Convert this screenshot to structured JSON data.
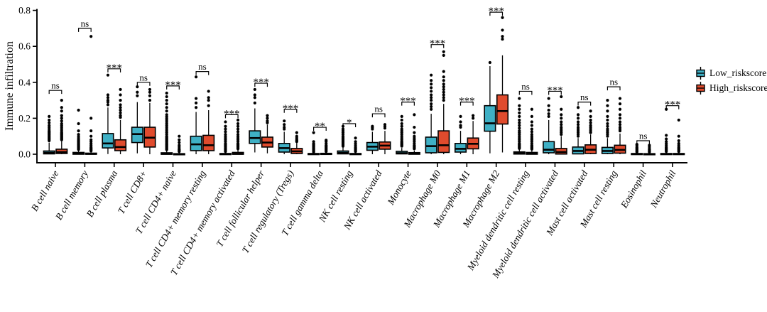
{
  "chart_data": {
    "type": "boxplot",
    "title": "",
    "xlabel": "",
    "ylabel": "Immune infiltration",
    "ylim": [
      0,
      0.8
    ],
    "yticks": [
      0.0,
      0.2,
      0.4,
      0.6,
      0.8
    ],
    "grid": false,
    "legend_position": "right",
    "categories": [
      "B cell naive",
      "B cell memory",
      "B cell plasma",
      "T cell CD8+",
      "T cell CD4+ naive",
      "T cell CD4+ memory resting",
      "T cell CD4+ memory activated",
      "T cell follicular helper",
      "T cell regulatory (Tregs)",
      "T cell gamma delta",
      "NK cell resting",
      "NK cell activated",
      "Monocyte",
      "Macrophage M0",
      "Macrophage M1",
      "Macrophage M2",
      "Myeloid dendritic cell resting",
      "Myeloid dendritic cell activated",
      "Mast cell activated",
      "Mast cell resting",
      "Eosinophil",
      "Neutrophil"
    ],
    "significance": [
      {
        "label": "ns",
        "y": 0.355
      },
      {
        "label": "ns",
        "y": 0.7
      },
      {
        "label": "***",
        "y": 0.475
      },
      {
        "label": "ns",
        "y": 0.4
      },
      {
        "label": "***",
        "y": 0.38
      },
      {
        "label": "ns",
        "y": 0.46
      },
      {
        "label": "***",
        "y": 0.22
      },
      {
        "label": "***",
        "y": 0.395
      },
      {
        "label": "***",
        "y": 0.25
      },
      {
        "label": "**",
        "y": 0.15
      },
      {
        "label": "*",
        "y": 0.17
      },
      {
        "label": "ns",
        "y": 0.225
      },
      {
        "label": "***",
        "y": 0.29
      },
      {
        "label": "***",
        "y": 0.61
      },
      {
        "label": "***",
        "y": 0.29
      },
      {
        "label": "***",
        "y": 0.79
      },
      {
        "label": "ns",
        "y": 0.35
      },
      {
        "label": "***",
        "y": 0.35
      },
      {
        "label": "ns",
        "y": 0.29
      },
      {
        "label": "ns",
        "y": 0.375
      },
      {
        "label": "ns",
        "y": 0.075
      },
      {
        "label": "***",
        "y": 0.27
      }
    ],
    "series": [
      {
        "name": "Low_riskscore",
        "color": "#3fb0c5",
        "boxes": [
          {
            "lo": 0,
            "q1": 0.002,
            "med": 0.008,
            "q3": 0.018,
            "hi": 0.065,
            "outliers": [
              0.075,
              0.08,
              0.085,
              0.09,
              0.095,
              0.1,
              0.105,
              0.11,
              0.115,
              0.12,
              0.125,
              0.13,
              0.14,
              0.15,
              0.16,
              0.175,
              0.19,
              0.21
            ]
          },
          {
            "lo": 0,
            "q1": 0,
            "med": 0.003,
            "q3": 0.01,
            "hi": 0.022,
            "outliers": [
              0.026,
              0.03,
              0.034,
              0.038,
              0.042,
              0.046,
              0.05,
              0.055,
              0.06,
              0.065,
              0.07,
              0.075,
              0.08,
              0.09,
              0.1,
              0.11,
              0.13,
              0.17,
              0.245
            ]
          },
          {
            "lo": 0.001,
            "q1": 0.035,
            "med": 0.06,
            "q3": 0.115,
            "hi": 0.26,
            "outliers": [
              0.275,
              0.29,
              0.3,
              0.315,
              0.33,
              0.44
            ]
          },
          {
            "lo": 0.005,
            "q1": 0.065,
            "med": 0.112,
            "q3": 0.15,
            "hi": 0.29,
            "outliers": [
              0.325,
              0.345,
              0.375
            ]
          },
          {
            "lo": 0,
            "q1": 0,
            "med": 0.002,
            "q3": 0.008,
            "hi": 0.02,
            "outliers": [
              0.025,
              0.03,
              0.035,
              0.04,
              0.045,
              0.05,
              0.055,
              0.06,
              0.065,
              0.07,
              0.075,
              0.08,
              0.085,
              0.09,
              0.095,
              0.1,
              0.11,
              0.12,
              0.13,
              0.14,
              0.15,
              0.16,
              0.17,
              0.18,
              0.19,
              0.2,
              0.21,
              0.22,
              0.24,
              0.26,
              0.28,
              0.3,
              0.32,
              0.34
            ]
          },
          {
            "lo": 0,
            "q1": 0.02,
            "med": 0.055,
            "q3": 0.1,
            "hi": 0.235,
            "outliers": [
              0.26,
              0.285,
              0.31,
              0.43
            ]
          },
          {
            "lo": 0,
            "q1": 0,
            "med": 0.001,
            "q3": 0.004,
            "hi": 0.01,
            "outliers": [
              0.015,
              0.02,
              0.025,
              0.03,
              0.035,
              0.04,
              0.045,
              0.05,
              0.055,
              0.06,
              0.07,
              0.08,
              0.09,
              0.1,
              0.11,
              0.125,
              0.14,
              0.155,
              0.18
            ]
          },
          {
            "lo": 0.01,
            "q1": 0.06,
            "med": 0.09,
            "q3": 0.13,
            "hi": 0.255,
            "outliers": [
              0.285,
              0.315,
              0.33,
              0.36
            ]
          },
          {
            "lo": 0,
            "q1": 0.012,
            "med": 0.034,
            "q3": 0.06,
            "hi": 0.125,
            "outliers": [
              0.14,
              0.15,
              0.165,
              0.185
            ]
          },
          {
            "lo": 0,
            "q1": 0,
            "med": 0.001,
            "q3": 0.004,
            "hi": 0.01,
            "outliers": [
              0.012,
              0.016,
              0.02,
              0.025,
              0.03,
              0.035,
              0.04,
              0.045,
              0.05,
              0.055,
              0.06,
              0.07,
              0.12
            ]
          },
          {
            "lo": 0,
            "q1": 0.002,
            "med": 0.008,
            "q3": 0.018,
            "hi": 0.04,
            "outliers": [
              0.045,
              0.05,
              0.055,
              0.06,
              0.065,
              0.07,
              0.075,
              0.08,
              0.085,
              0.09,
              0.095,
              0.1,
              0.11,
              0.12,
              0.13,
              0.14,
              0.155
            ]
          },
          {
            "lo": 0,
            "q1": 0.022,
            "med": 0.042,
            "q3": 0.065,
            "hi": 0.125,
            "outliers": [
              0.14,
              0.148,
              0.155
            ]
          },
          {
            "lo": 0,
            "q1": 0.002,
            "med": 0.006,
            "q3": 0.016,
            "hi": 0.035,
            "outliers": [
              0.045,
              0.05,
              0.055,
              0.06,
              0.065,
              0.07,
              0.08,
              0.09,
              0.1,
              0.11,
              0.12,
              0.13,
              0.14,
              0.155,
              0.17,
              0.19,
              0.21
            ]
          },
          {
            "lo": 0,
            "q1": 0.008,
            "med": 0.045,
            "q3": 0.095,
            "hi": 0.225,
            "outliers": [
              0.25,
              0.265,
              0.28,
              0.3,
              0.315,
              0.33,
              0.35,
              0.37,
              0.39,
              0.41,
              0.44
            ]
          },
          {
            "lo": 0,
            "q1": 0.012,
            "med": 0.03,
            "q3": 0.06,
            "hi": 0.13,
            "outliers": [
              0.15,
              0.16,
              0.18,
              0.21
            ]
          },
          {
            "lo": 0.005,
            "q1": 0.128,
            "med": 0.172,
            "q3": 0.27,
            "hi": 0.49,
            "outliers": [
              0.51
            ]
          },
          {
            "lo": 0,
            "q1": 0.001,
            "med": 0.005,
            "q3": 0.013,
            "hi": 0.028,
            "outliers": [
              0.032,
              0.036,
              0.04,
              0.045,
              0.05,
              0.055,
              0.06,
              0.07,
              0.08,
              0.09,
              0.1,
              0.11,
              0.12,
              0.13,
              0.145,
              0.16,
              0.175,
              0.19,
              0.21,
              0.23,
              0.25,
              0.27,
              0.31
            ]
          },
          {
            "lo": 0,
            "q1": 0.008,
            "med": 0.025,
            "q3": 0.07,
            "hi": 0.19,
            "outliers": [
              0.21,
              0.225,
              0.245,
              0.27,
              0.31
            ]
          },
          {
            "lo": 0,
            "q1": 0.002,
            "med": 0.018,
            "q3": 0.04,
            "hi": 0.09,
            "outliers": [
              0.1,
              0.11,
              0.12,
              0.13,
              0.14,
              0.15,
              0.165,
              0.18,
              0.2,
              0.22,
              0.26
            ]
          },
          {
            "lo": 0,
            "q1": 0.004,
            "med": 0.018,
            "q3": 0.038,
            "hi": 0.09,
            "outliers": [
              0.1,
              0.11,
              0.12,
              0.13,
              0.14,
              0.155,
              0.17,
              0.19,
              0.21,
              0.24,
              0.27,
              0.3
            ]
          },
          {
            "lo": 0,
            "q1": 0,
            "med": 0.001,
            "q3": 0.004,
            "hi": 0.01,
            "outliers": [
              0.012,
              0.016,
              0.02,
              0.025,
              0.03,
              0.035,
              0.04,
              0.05,
              0.055
            ]
          },
          {
            "lo": 0,
            "q1": 0,
            "med": 0.001,
            "q3": 0.004,
            "hi": 0.01,
            "outliers": [
              0.015,
              0.02,
              0.025,
              0.03,
              0.035,
              0.04,
              0.05,
              0.06,
              0.07,
              0.085,
              0.105,
              0.25
            ]
          }
        ]
      },
      {
        "name": "High_riskscore",
        "color": "#e04b2d",
        "boxes": [
          {
            "lo": 0,
            "q1": 0.004,
            "med": 0.012,
            "q3": 0.028,
            "hi": 0.072,
            "outliers": [
              0.08,
              0.085,
              0.09,
              0.095,
              0.1,
              0.105,
              0.11,
              0.115,
              0.12,
              0.13,
              0.14,
              0.15,
              0.16,
              0.17,
              0.185,
              0.2,
              0.215,
              0.24,
              0.26,
              0.3
            ]
          },
          {
            "lo": 0,
            "q1": 0,
            "med": 0.002,
            "q3": 0.006,
            "hi": 0.015,
            "outliers": [
              0.018,
              0.022,
              0.026,
              0.03,
              0.035,
              0.04,
              0.05,
              0.06,
              0.07,
              0.08,
              0.1,
              0.13,
              0.2,
              0.655
            ]
          },
          {
            "lo": 0,
            "q1": 0.02,
            "med": 0.04,
            "q3": 0.08,
            "hi": 0.19,
            "outliers": [
              0.205,
              0.215,
              0.23,
              0.245,
              0.26,
              0.275,
              0.3,
              0.33,
              0.36
            ]
          },
          {
            "lo": 0,
            "q1": 0.04,
            "med": 0.092,
            "q3": 0.15,
            "hi": 0.285,
            "outliers": [
              0.3,
              0.325,
              0.345,
              0.36
            ]
          },
          {
            "lo": 0,
            "q1": 0,
            "med": 0.001,
            "q3": 0.003,
            "hi": 0.008,
            "outliers": [
              0.015,
              0.02,
              0.025,
              0.03,
              0.04,
              0.05,
              0.065,
              0.08,
              0.1
            ]
          },
          {
            "lo": 0,
            "q1": 0.02,
            "med": 0.05,
            "q3": 0.105,
            "hi": 0.245,
            "outliers": [
              0.27,
              0.3,
              0.315,
              0.35
            ]
          },
          {
            "lo": 0,
            "q1": 0,
            "med": 0.002,
            "q3": 0.01,
            "hi": 0.025,
            "outliers": [
              0.03,
              0.035,
              0.04,
              0.045,
              0.05,
              0.055,
              0.06,
              0.07,
              0.08,
              0.09,
              0.1,
              0.11,
              0.125,
              0.14,
              0.155,
              0.17,
              0.19
            ]
          },
          {
            "lo": 0.005,
            "q1": 0.04,
            "med": 0.065,
            "q3": 0.095,
            "hi": 0.165,
            "outliers": [
              0.175,
              0.185,
              0.2,
              0.215
            ]
          },
          {
            "lo": 0,
            "q1": 0.004,
            "med": 0.016,
            "q3": 0.032,
            "hi": 0.062,
            "outliers": [
              0.07,
              0.075,
              0.08,
              0.09,
              0.1,
              0.12
            ]
          },
          {
            "lo": 0,
            "q1": 0,
            "med": 0.001,
            "q3": 0.005,
            "hi": 0.012,
            "outliers": [
              0.015,
              0.02,
              0.025,
              0.03,
              0.035,
              0.04,
              0.045,
              0.05,
              0.06,
              0.07,
              0.078
            ]
          },
          {
            "lo": 0,
            "q1": 0,
            "med": 0.001,
            "q3": 0.004,
            "hi": 0.01,
            "outliers": [
              0.015,
              0.02,
              0.025,
              0.03,
              0.035,
              0.04,
              0.05,
              0.06,
              0.07,
              0.09
            ]
          },
          {
            "lo": 0,
            "q1": 0.028,
            "med": 0.048,
            "q3": 0.068,
            "hi": 0.13,
            "outliers": [
              0.145,
              0.155,
              0.165
            ]
          },
          {
            "lo": 0,
            "q1": 0,
            "med": 0.003,
            "q3": 0.009,
            "hi": 0.02,
            "outliers": [
              0.03,
              0.035,
              0.04,
              0.045,
              0.05,
              0.06,
              0.07,
              0.08,
              0.09,
              0.1,
              0.12,
              0.15,
              0.22
            ]
          },
          {
            "lo": 0,
            "q1": 0.01,
            "med": 0.05,
            "q3": 0.13,
            "hi": 0.28,
            "outliers": [
              0.3,
              0.315,
              0.33,
              0.345,
              0.36,
              0.375,
              0.39,
              0.41,
              0.43,
              0.46,
              0.55,
              0.57
            ]
          },
          {
            "lo": 0,
            "q1": 0.03,
            "med": 0.058,
            "q3": 0.09,
            "hi": 0.185,
            "outliers": [
              0.2,
              0.215
            ]
          },
          {
            "lo": 0.01,
            "q1": 0.168,
            "med": 0.24,
            "q3": 0.33,
            "hi": 0.55,
            "outliers": [
              0.64,
              0.655,
              0.69,
              0.76
            ]
          },
          {
            "lo": 0,
            "q1": 0,
            "med": 0.004,
            "q3": 0.01,
            "hi": 0.022,
            "outliers": [
              0.028,
              0.032,
              0.036,
              0.04,
              0.045,
              0.05,
              0.06,
              0.07,
              0.08,
              0.09,
              0.1,
              0.11,
              0.125,
              0.14,
              0.16,
              0.18,
              0.21,
              0.25
            ]
          },
          {
            "lo": 0,
            "q1": 0.001,
            "med": 0.012,
            "q3": 0.032,
            "hi": 0.1,
            "outliers": [
              0.11,
              0.12,
              0.13,
              0.14,
              0.15,
              0.165,
              0.18,
              0.2,
              0.22,
              0.25,
              0.32
            ]
          },
          {
            "lo": 0,
            "q1": 0.004,
            "med": 0.025,
            "q3": 0.052,
            "hi": 0.11,
            "outliers": [
              0.12,
              0.13,
              0.14,
              0.15,
              0.16,
              0.175,
              0.19,
              0.21,
              0.24
            ]
          },
          {
            "lo": 0,
            "q1": 0.006,
            "med": 0.024,
            "q3": 0.05,
            "hi": 0.115,
            "outliers": [
              0.13,
              0.14,
              0.15,
              0.165,
              0.18,
              0.2,
              0.22,
              0.25,
              0.28,
              0.31
            ]
          },
          {
            "lo": 0,
            "q1": 0,
            "med": 0.001,
            "q3": 0.003,
            "hi": 0.008,
            "outliers": [
              0.012,
              0.015,
              0.02,
              0.025,
              0.03,
              0.04,
              0.05
            ]
          },
          {
            "lo": 0,
            "q1": 0,
            "med": 0.001,
            "q3": 0.004,
            "hi": 0.01,
            "outliers": [
              0.015,
              0.02,
              0.025,
              0.03,
              0.035,
              0.04,
              0.05,
              0.06,
              0.075,
              0.1,
              0.19
            ]
          }
        ]
      }
    ]
  }
}
